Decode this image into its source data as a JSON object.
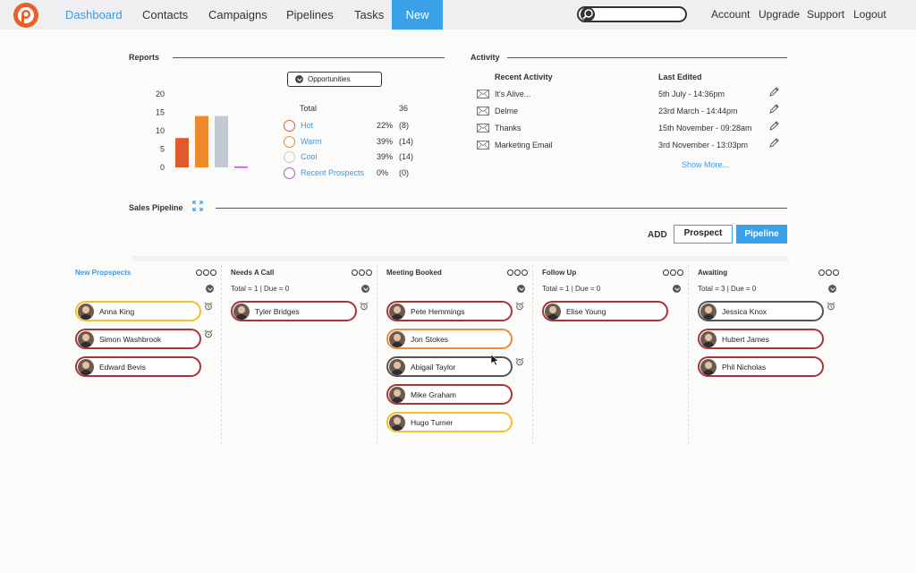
{
  "nav": {
    "items": [
      "Dashboard",
      "Contacts",
      "Campaigns",
      "Pipelines",
      "Tasks"
    ],
    "new_label": "New",
    "right": [
      "Account",
      "Upgrade",
      "Support",
      "Logout"
    ],
    "search_placeholder": ""
  },
  "reports": {
    "title": "Reports",
    "dropdown": "Opportunities",
    "total_label": "Total",
    "total_value": "36",
    "legend": [
      {
        "name": "Hot",
        "pct": "22%",
        "count": "(8)",
        "color": "#e8602c"
      },
      {
        "name": "Warm",
        "pct": "39%",
        "count": "(14)",
        "color": "#ee8a2b"
      },
      {
        "name": "Cool",
        "pct": "39%",
        "count": "(14)",
        "color": "#c3c9d3"
      },
      {
        "name": "Recent Prospects",
        "pct": "0%",
        "count": "(0)",
        "color": "#c34bd6"
      }
    ]
  },
  "chart_data": {
    "type": "bar",
    "categories": [
      "Hot",
      "Warm",
      "Cool",
      "Recent Prospects"
    ],
    "values": [
      8,
      14,
      14,
      0
    ],
    "colors": [
      "#e15a2b",
      "#ee8a2b",
      "#c3c9d3",
      "#c34bd6"
    ],
    "yticks": [
      "20",
      "15",
      "10",
      "5",
      "0"
    ],
    "ylim": [
      0,
      20
    ]
  },
  "activity": {
    "title": "Activity",
    "col1": "Recent Activity",
    "col2": "Last Edited",
    "rows": [
      {
        "subject": "It's Alive...",
        "edited": "5th July - 14:36pm"
      },
      {
        "subject": "Delme",
        "edited": "23rd March - 14:44pm"
      },
      {
        "subject": "Thanks",
        "edited": "15th November - 09:28am"
      },
      {
        "subject": "Marketing Email",
        "edited": "3rd November - 13:03pm"
      }
    ],
    "show_more": "Show More..."
  },
  "pipeline": {
    "title": "Sales Pipeline",
    "add_label": "ADD",
    "prospect_btn": "Prospect",
    "pipeline_btn": "Pipeline",
    "columns": [
      {
        "title": "New Propspects",
        "blue": true,
        "totals": "",
        "cards": [
          {
            "name": "Anna King",
            "c": "y",
            "alarm": true
          },
          {
            "name": "Simon Washbrook",
            "c": "r",
            "alarm": true
          },
          {
            "name": "Edward Bevis",
            "c": "r",
            "alarm": false
          }
        ]
      },
      {
        "title": "Needs A Call",
        "blue": false,
        "totals": "Total = 1 | Due = 0",
        "cards": [
          {
            "name": "Tyler Bridges",
            "c": "r",
            "alarm": true
          }
        ]
      },
      {
        "title": "Meeting Booked",
        "blue": false,
        "totals": "",
        "cards": [
          {
            "name": "Pete Hemmings",
            "c": "r",
            "alarm": true
          },
          {
            "name": "Jon Stokes",
            "c": "o",
            "alarm": false
          },
          {
            "name": "Abigail Taylor",
            "c": "g",
            "alarm": true
          },
          {
            "name": "Mike Graham",
            "c": "r",
            "alarm": false
          },
          {
            "name": "Hugo Turner",
            "c": "y",
            "alarm": false
          }
        ]
      },
      {
        "title": "Follow Up",
        "blue": false,
        "totals": "Total = 1 | Due = 0",
        "cards": [
          {
            "name": "Elise Young",
            "c": "r",
            "alarm": false
          }
        ]
      },
      {
        "title": "Awaiting",
        "blue": false,
        "totals": "Total = 3 | Due = 0",
        "cards": [
          {
            "name": "Jessica Knox",
            "c": "g",
            "alarm": true
          },
          {
            "name": "Hubert James",
            "c": "r",
            "alarm": false
          },
          {
            "name": "Phil Nicholas",
            "c": "r",
            "alarm": false
          }
        ]
      }
    ]
  }
}
